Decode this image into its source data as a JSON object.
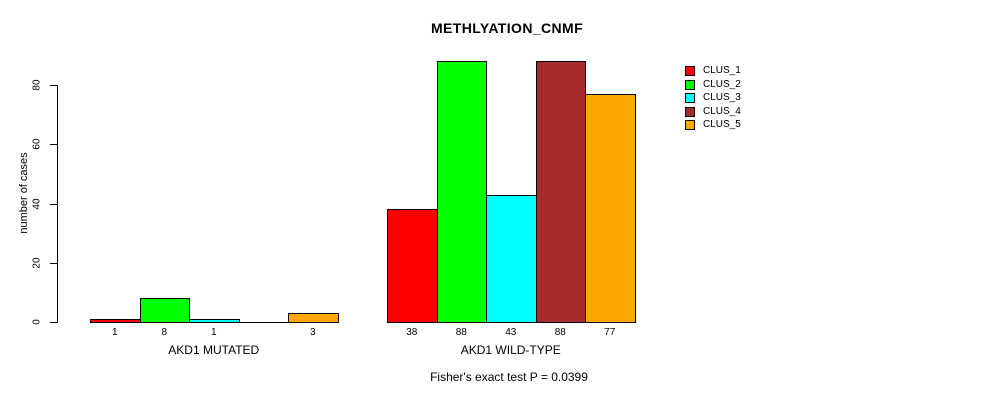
{
  "title": "METHLYATION_CNMF",
  "subtitle": "Fisher's exact test P = 0.0399",
  "y_axis": {
    "label": "number of cases",
    "ticks": [
      0,
      20,
      40,
      60,
      80
    ]
  },
  "legend": {
    "entries": [
      {
        "label": "CLUS_1",
        "color": "#FF0000"
      },
      {
        "label": "CLUS_2",
        "color": "#00FF00"
      },
      {
        "label": "CLUS_3",
        "color": "#00FFFF"
      },
      {
        "label": "CLUS_4",
        "color": "#A52A2A"
      },
      {
        "label": "CLUS_5",
        "color": "#FFA500"
      }
    ]
  },
  "chart_data": {
    "type": "bar",
    "title": "METHLYATION_CNMF",
    "xlabel": "",
    "ylabel": "number of cases",
    "ylim": [
      0,
      88
    ],
    "yticks": [
      0,
      20,
      40,
      60,
      80
    ],
    "grid": false,
    "legend_position": "right",
    "legend": [
      "CLUS_1",
      "CLUS_2",
      "CLUS_3",
      "CLUS_4",
      "CLUS_5"
    ],
    "series_colors": [
      "#FF0000",
      "#00FF00",
      "#00FFFF",
      "#A52A2A",
      "#FFA500"
    ],
    "groups": [
      {
        "label": "AKD1 MUTATED",
        "values": [
          1,
          8,
          1,
          0,
          3
        ],
        "value_labels": [
          "1",
          "8",
          "1",
          "",
          "3"
        ]
      },
      {
        "label": "AKD1 WILD-TYPE",
        "values": [
          38,
          88,
          43,
          88,
          77
        ],
        "value_labels": [
          "38",
          "88",
          "43",
          "88",
          "77"
        ]
      }
    ],
    "annotation": "Fisher's exact test P = 0.0399"
  }
}
